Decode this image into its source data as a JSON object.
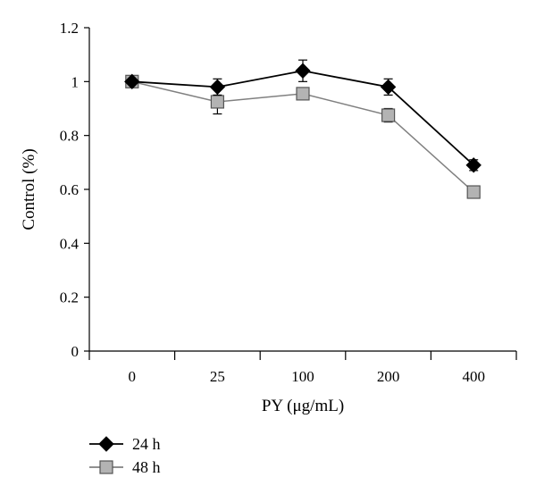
{
  "chart_data": {
    "type": "line",
    "xlabel": "PY (μg/mL)",
    "ylabel": "Control (%)",
    "categories": [
      "0",
      "25",
      "100",
      "200",
      "400"
    ],
    "ylim": [
      0,
      1.2
    ],
    "yticks": [
      "0",
      "0.2",
      "0.4",
      "0.6",
      "0.8",
      "1",
      "1.2"
    ],
    "grid": false,
    "legend_position": "bottom-left",
    "series": [
      {
        "name": "24 h",
        "marker": "diamond",
        "color": "#000000",
        "fill": "#000000",
        "values": [
          1.0,
          0.98,
          1.04,
          0.98,
          0.69
        ],
        "errors": [
          0.0,
          0.03,
          0.04,
          0.03,
          0.02
        ]
      },
      {
        "name": "48 h",
        "marker": "square",
        "color": "#808080",
        "fill": "#b3b3b3",
        "values": [
          1.0,
          0.925,
          0.955,
          0.875,
          0.59
        ],
        "errors": [
          0.0,
          0.045,
          0.0,
          0.025,
          0.0
        ]
      }
    ]
  }
}
